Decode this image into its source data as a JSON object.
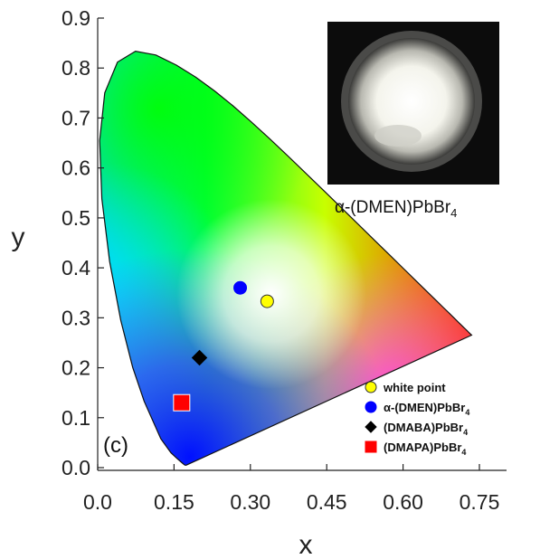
{
  "chart_data": {
    "type": "scatter",
    "xlabel": "x",
    "ylabel": "y",
    "xlim": [
      0.0,
      0.75
    ],
    "ylim": [
      0.0,
      0.9
    ],
    "xticks": [
      "0.0",
      "0.15",
      "0.30",
      "0.45",
      "0.60",
      "0.75"
    ],
    "yticks": [
      "0.0",
      "0.1",
      "0.2",
      "0.3",
      "0.4",
      "0.5",
      "0.6",
      "0.7",
      "0.8",
      "0.9"
    ],
    "panel_label": "(c)",
    "grid": false,
    "legend_position": "bottom-right",
    "background": "CIE 1931 chromaticity diagram",
    "series": [
      {
        "name_main": "white point",
        "name_sub": "",
        "name_tail": "",
        "x": 0.333,
        "y": 0.333,
        "marker": "circle",
        "color": "#ffff00"
      },
      {
        "name_main": "α-(DMEN)PbBr",
        "name_sub": "4",
        "name_tail": "",
        "x": 0.28,
        "y": 0.36,
        "marker": "circle",
        "color": "#0000ff"
      },
      {
        "name_main": "(DMABA)PbBr",
        "name_sub": "4",
        "name_tail": "",
        "x": 0.2,
        "y": 0.22,
        "marker": "diamond",
        "color": "#000000"
      },
      {
        "name_main": "(DMAPA)PbBr",
        "name_sub": "4",
        "name_tail": "",
        "x": 0.165,
        "y": 0.13,
        "marker": "square",
        "color": "#ff0000"
      }
    ],
    "inset": {
      "caption_main": "α-(DMEN)PbBr",
      "caption_sub": "4"
    }
  }
}
